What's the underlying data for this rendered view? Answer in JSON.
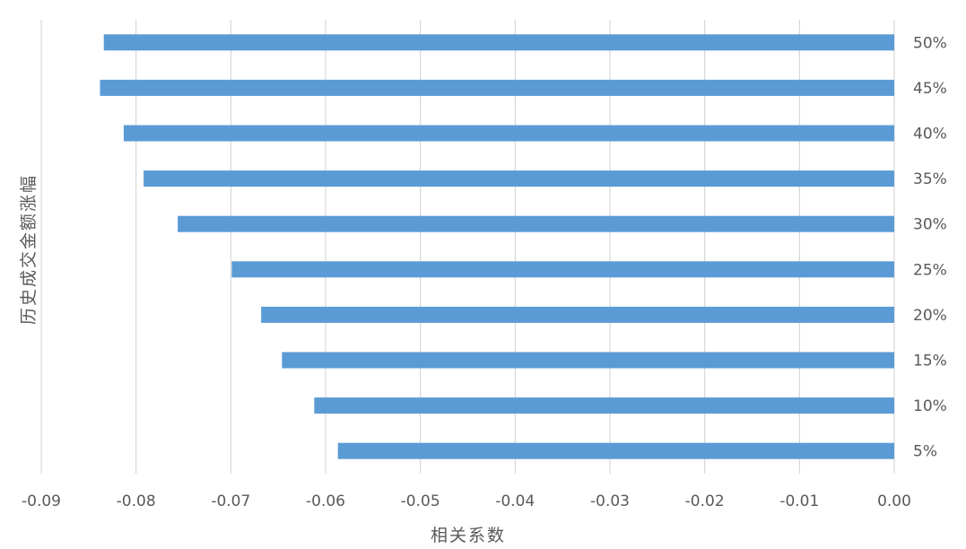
{
  "chart_data": {
    "type": "bar",
    "orientation": "horizontal",
    "title": "",
    "xlabel": "相关系数",
    "ylabel": "历史成交金额涨幅",
    "xlim": [
      -0.09,
      0.0
    ],
    "x_ticks": [
      "-0.09",
      "-0.08",
      "-0.07",
      "-0.06",
      "-0.05",
      "-0.04",
      "-0.03",
      "-0.02",
      "-0.01",
      "0.00"
    ],
    "categories": [
      "50%",
      "45%",
      "40%",
      "35%",
      "30%",
      "25%",
      "20%",
      "15%",
      "10%",
      "5%"
    ],
    "values": [
      -0.0834,
      -0.0838,
      -0.0813,
      -0.0792,
      -0.0756,
      -0.0699,
      -0.0668,
      -0.0646,
      -0.0612,
      -0.0587
    ],
    "grid": true,
    "legend": "none",
    "color": "#5b9bd5",
    "category_axis_side": "right"
  }
}
